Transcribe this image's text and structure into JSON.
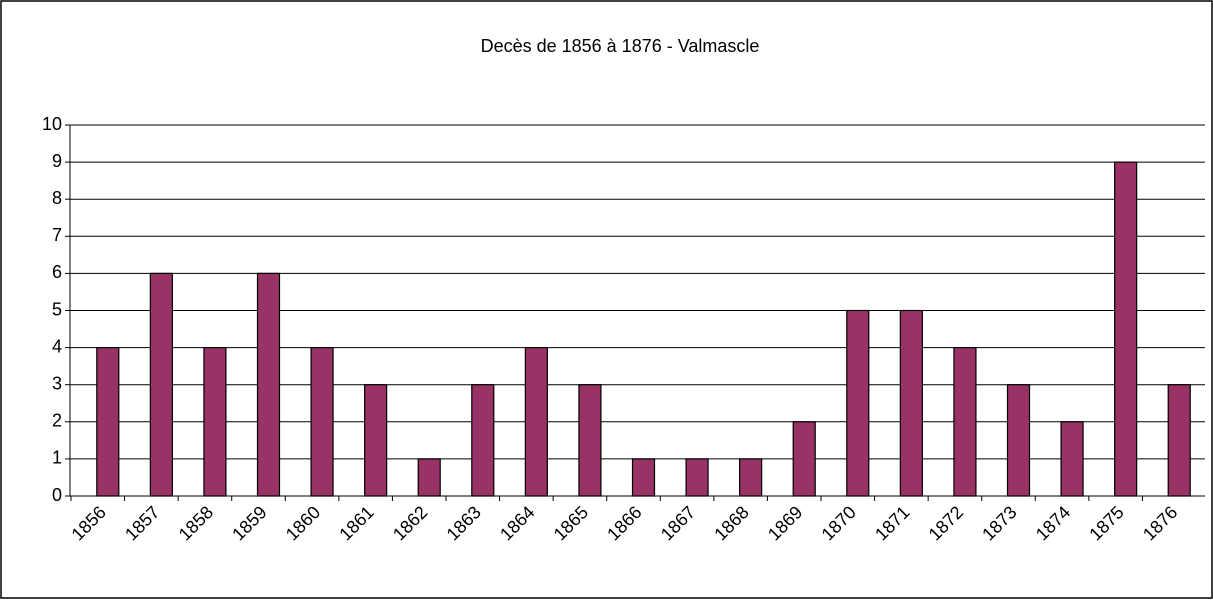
{
  "chart_data": {
    "type": "bar",
    "title": "Decès de 1856 à 1876 - Valmascle",
    "categories": [
      "1856",
      "1857",
      "1858",
      "1859",
      "1860",
      "1861",
      "1862",
      "1863",
      "1864",
      "1865",
      "1866",
      "1867",
      "1868",
      "1869",
      "1870",
      "1871",
      "1872",
      "1873",
      "1874",
      "1875",
      "1876"
    ],
    "values": [
      4,
      6,
      4,
      6,
      4,
      3,
      1,
      3,
      4,
      3,
      1,
      1,
      1,
      2,
      5,
      5,
      4,
      3,
      2,
      9,
      3
    ],
    "color": "#993366",
    "ylim": [
      0,
      10
    ],
    "yticks": [
      0,
      1,
      2,
      3,
      4,
      5,
      6,
      7,
      8,
      9,
      10
    ],
    "grid": true
  }
}
